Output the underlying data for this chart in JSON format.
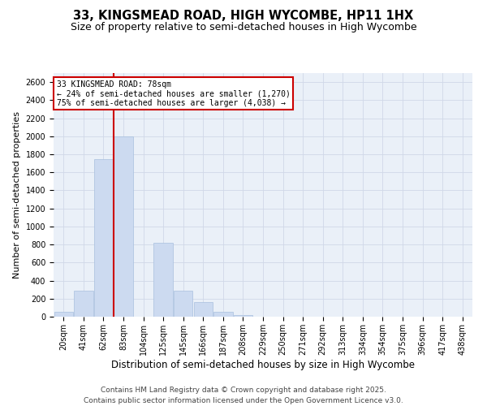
{
  "title": "33, KINGSMEAD ROAD, HIGH WYCOMBE, HP11 1HX",
  "subtitle": "Size of property relative to semi-detached houses in High Wycombe",
  "xlabel": "Distribution of semi-detached houses by size in High Wycombe",
  "ylabel": "Number of semi-detached properties",
  "categories": [
    "20sqm",
    "41sqm",
    "62sqm",
    "83sqm",
    "104sqm",
    "125sqm",
    "145sqm",
    "166sqm",
    "187sqm",
    "208sqm",
    "229sqm",
    "250sqm",
    "271sqm",
    "292sqm",
    "313sqm",
    "334sqm",
    "354sqm",
    "375sqm",
    "396sqm",
    "417sqm",
    "438sqm"
  ],
  "values": [
    50,
    290,
    1750,
    2000,
    0,
    820,
    290,
    160,
    50,
    20,
    0,
    0,
    0,
    0,
    0,
    0,
    0,
    0,
    0,
    0,
    0
  ],
  "bar_color": "#ccdaf0",
  "bar_edge_color": "#a8c0de",
  "vline_index": 3,
  "vline_color": "#cc0000",
  "annotation_text": "33 KINGSMEAD ROAD: 78sqm\n← 24% of semi-detached houses are smaller (1,270)\n75% of semi-detached houses are larger (4,038) →",
  "annotation_box_color": "#cc0000",
  "ylim": [
    0,
    2700
  ],
  "yticks": [
    0,
    200,
    400,
    600,
    800,
    1000,
    1200,
    1400,
    1600,
    1800,
    2000,
    2200,
    2400,
    2600
  ],
  "grid_color": "#d0d8e8",
  "background_color": "#eaf0f8",
  "footer": "Contains HM Land Registry data © Crown copyright and database right 2025.\nContains public sector information licensed under the Open Government Licence v3.0.",
  "title_fontsize": 10.5,
  "subtitle_fontsize": 9,
  "xlabel_fontsize": 8.5,
  "ylabel_fontsize": 8,
  "tick_fontsize": 7,
  "footer_fontsize": 6.5
}
